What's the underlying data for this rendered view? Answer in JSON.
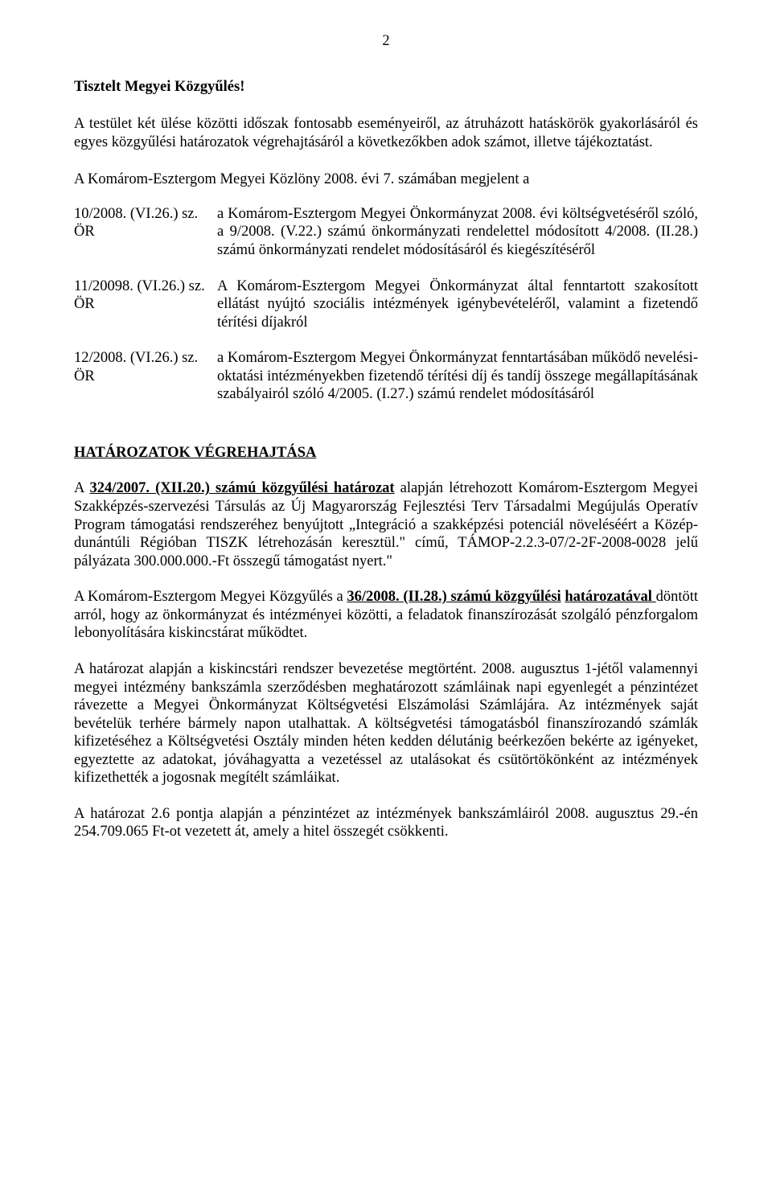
{
  "pageNumber": "2",
  "salutation": "Tisztelt Megyei Közgyűlés!",
  "intro": "A testület két ülése közötti időszak fontosabb eseményeiről, az átruházott hatáskörök gyakorlásáról és egyes közgyűlési határozatok végrehajtásáról a következőkben adok számot, illetve tájékoztatást.",
  "subIntro": "A Komárom-Esztergom Megyei Közlöny 2008. évi  7. számában megjelent a",
  "refs": [
    {
      "left": "10/2008. (VI.26.) sz. ÖR",
      "right": "a Komárom-Esztergom Megyei Önkormányzat 2008. évi költségvetéséről szóló, a 9/2008. (V.22.) számú önkormányzati rendelettel módosított 4/2008. (II.28.) számú önkormányzati rendelet módosításáról és kiegészítéséről"
    },
    {
      "left": "11/20098. (VI.26.) sz. ÖR",
      "right": "A Komárom-Esztergom Megyei Önkormányzat által fenntartott szakosított ellátást nyújtó szociális intézmények igénybevételéről, valamint a fizetendő térítési díjakról"
    },
    {
      "left": "12/2008. (VI.26.) sz. ÖR",
      "right": "a Komárom-Esztergom Megyei Önkormányzat fenntartásában működő nevelési-oktatási intézményekben fizetendő térítési díj és tandíj összege megállapításának szabályairól szóló 4/2005. (I.27.) számú rendelet módosításáról"
    }
  ],
  "sectionHeading": "HATÁROZATOK VÉGREHAJTÁSA",
  "p1": {
    "lead": "A ",
    "boldUnder": "324/2007. (XII.20.) számú közgyűlési határozat",
    "rest": " alapján létrehozott Komárom-Esztergom Megyei Szakképzés-szervezési Társulás az Új Magyarország Fejlesztési Terv Társadalmi Megújulás Operatív Program támogatási rendszeréhez benyújtott „Integráció a szakképzési potenciál növeléséért a Közép-dunántúli Régióban TISZK létrehozásán keresztül.\" című, TÁMOP-2.2.3-07/2-2F-2008-0028 jelű pályázata 300.000.000.-Ft összegű támogatást nyert.\""
  },
  "p2": {
    "pre": "A Komárom-Esztergom Megyei Közgyűlés a ",
    "boldUnder1": "36/2008. (II.28.) számú közgyűlési",
    "boldUnder2": "határozatával ",
    "rest": " döntött arról, hogy az önkormányzat és intézményei közötti, a feladatok finanszírozását  szolgáló pénzforgalom  lebonyolítására kiskincstárat működtet."
  },
  "p3": "A határozat alapján a kiskincstári rendszer bevezetése megtörtént. 2008. augusztus 1-jétől valamennyi megyei intézmény bankszámla szerződésben meghatározott számláinak napi egyenlegét a pénzintézet rávezette a Megyei Önkormányzat Költségvetési Elszámolási Számlájára. Az intézmények saját bevételük terhére bármely napon utalhattak. A költségvetési támogatásból finanszírozandó számlák kifizetéséhez a Költségvetési Osztály minden héten kedden délutánig beérkezően bekérte az igényeket, egyeztette az adatokat, jóváhagyatta a vezetéssel az utalásokat és csütörtökönként az intézmények kifizethették a jogosnak megítélt számláikat.",
  "p4": "A határozat 2.6 pontja alapján a pénzintézet az intézmények bankszámláiról 2008. augusztus 29.-én 254.709.065 Ft-ot vezetett át, amely a hitel összegét csökkenti."
}
